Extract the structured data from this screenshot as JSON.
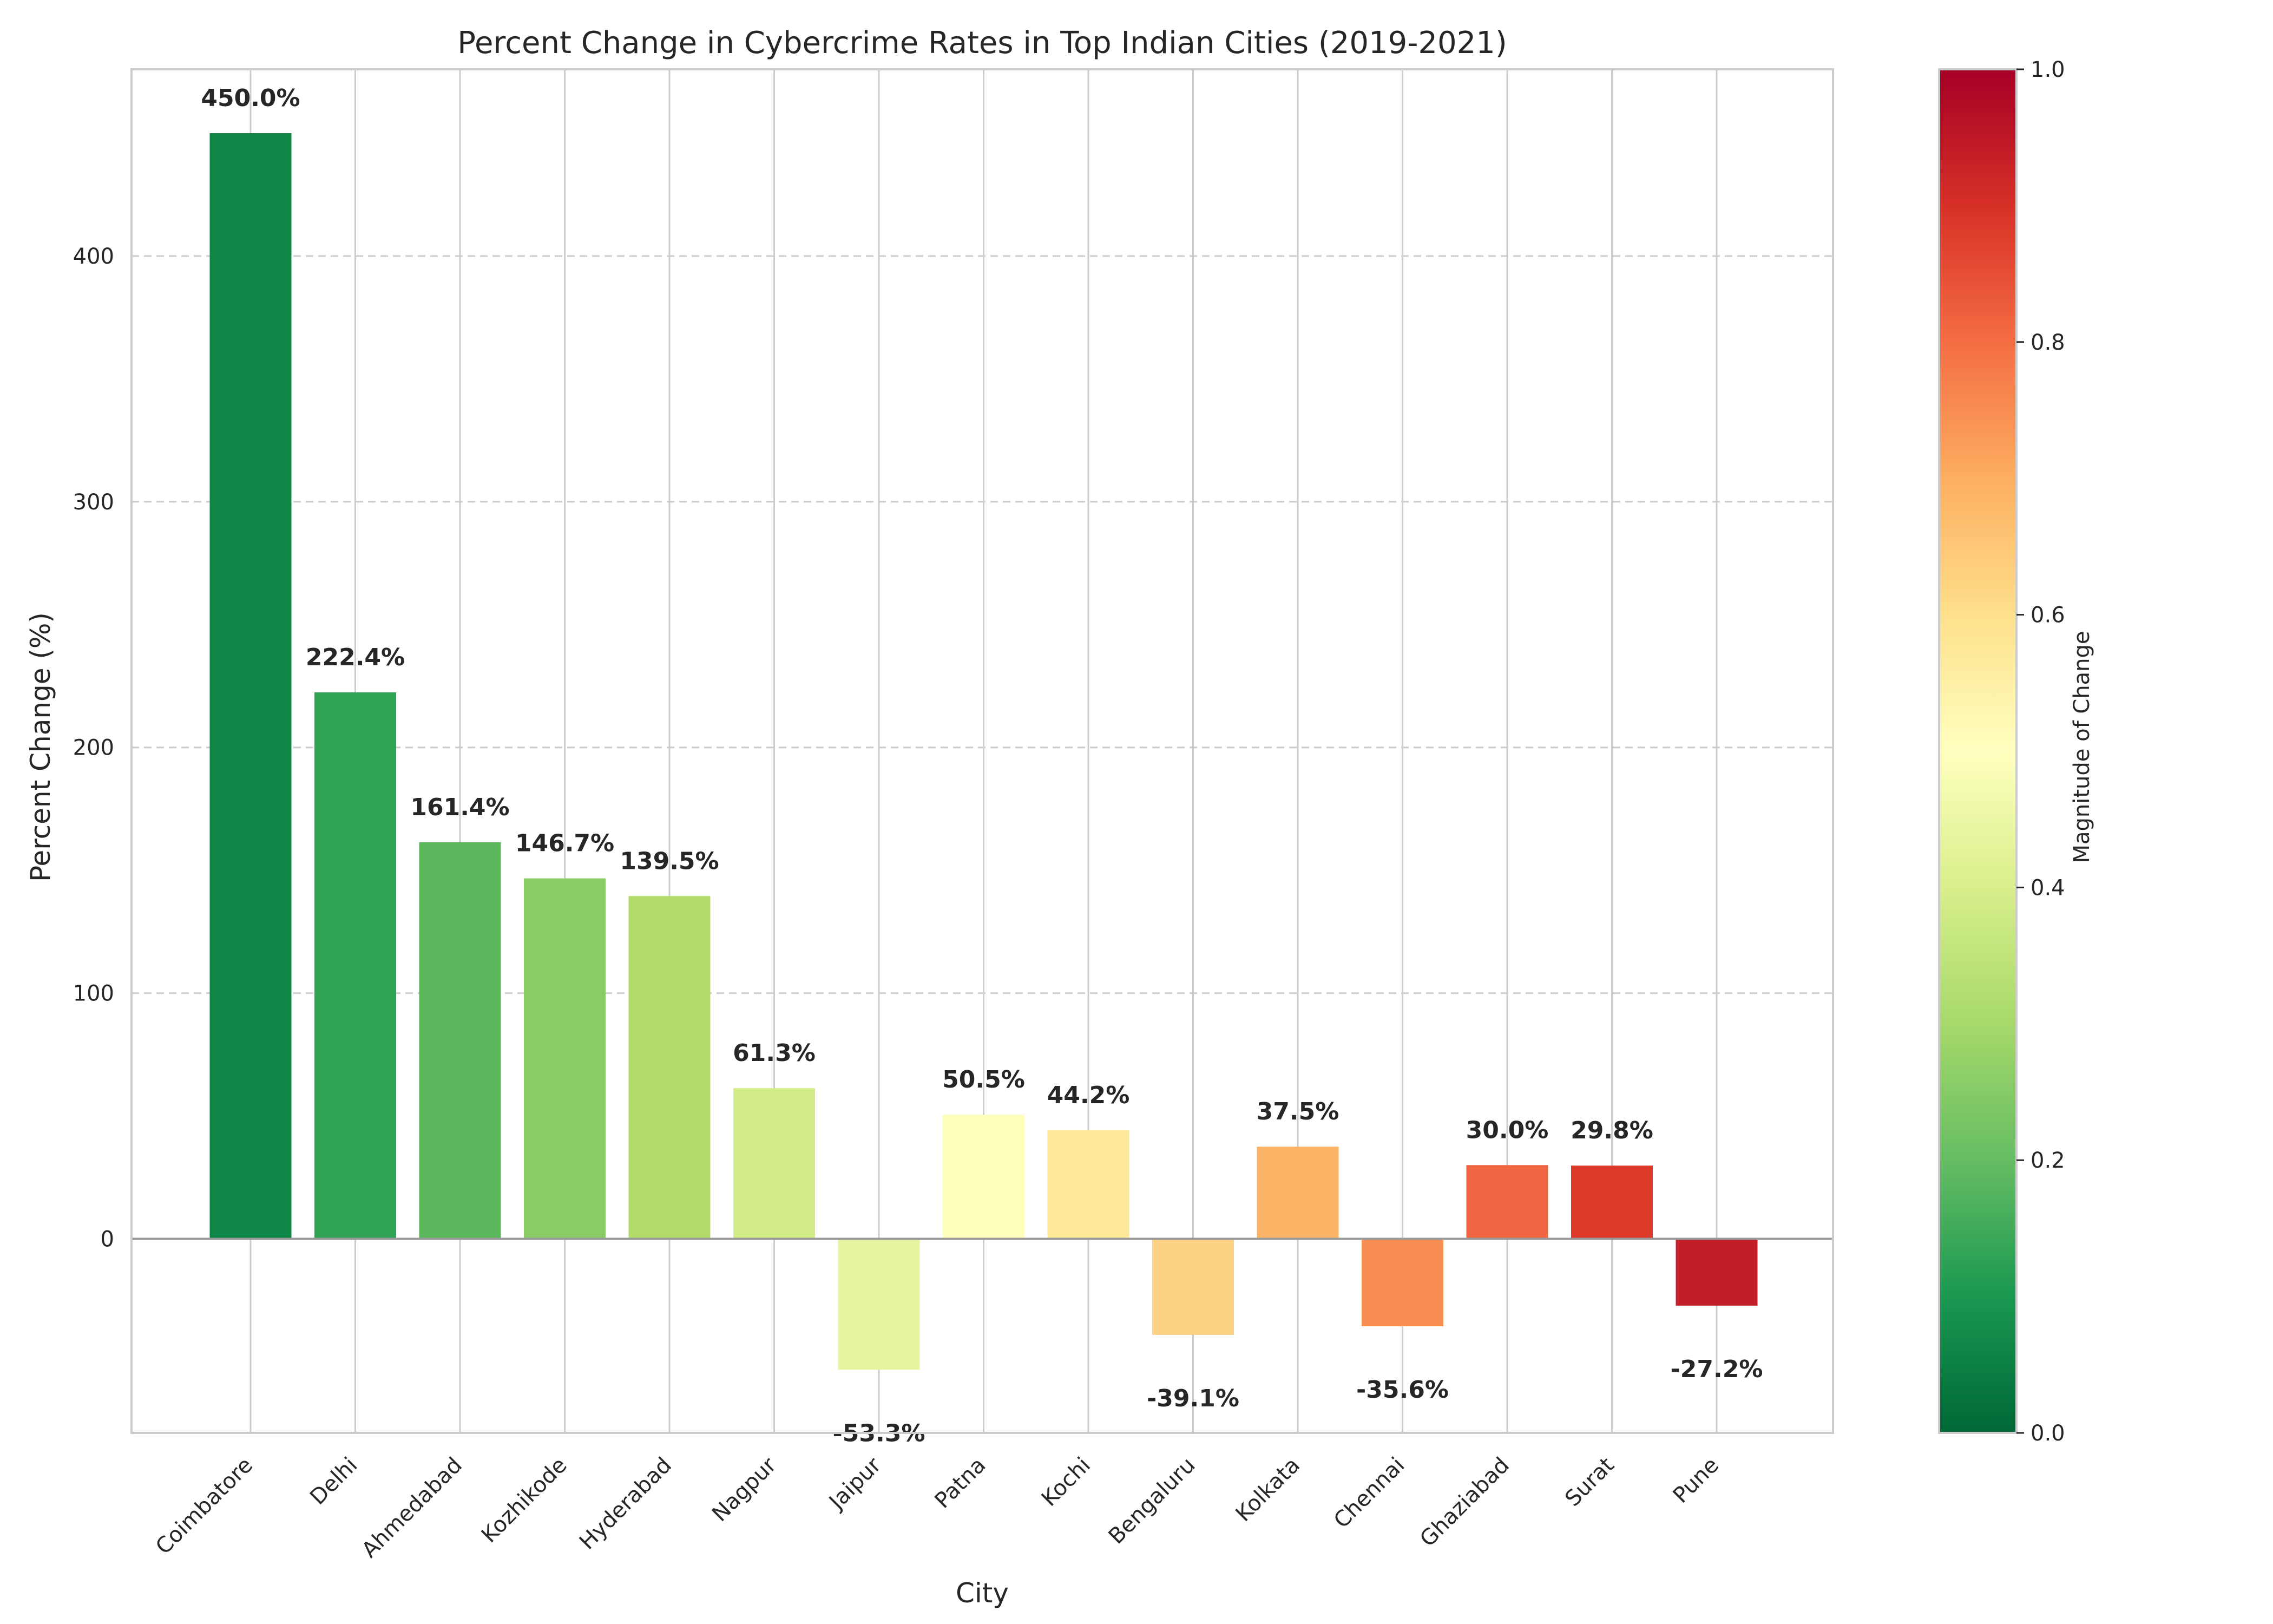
{
  "chart_data": {
    "type": "bar",
    "title": "Percent Change in Cybercrime Rates in Top Indian Cities (2019-2021)",
    "xlabel": "City",
    "ylabel": "Percent Change (%)",
    "categories": [
      "Coimbatore",
      "Delhi",
      "Ahmedabad",
      "Kozhikode",
      "Hyderabad",
      "Nagpur",
      "Jaipur",
      "Patna",
      "Kochi",
      "Bengaluru",
      "Kolkata",
      "Chennai",
      "Ghaziabad",
      "Surat",
      "Pune"
    ],
    "values": [
      450.0,
      222.4,
      161.4,
      146.7,
      139.5,
      61.3,
      -53.3,
      50.5,
      44.2,
      -39.1,
      37.5,
      -35.6,
      30.0,
      29.8,
      -27.2
    ],
    "data_labels": [
      "450.0%",
      "222.4%",
      "161.4%",
      "146.7%",
      "139.5%",
      "61.3%",
      "-53.3%",
      "50.5%",
      "44.2%",
      "-39.1%",
      "37.5%",
      "-35.6%",
      "30.0%",
      "29.8%",
      "-27.2%"
    ],
    "colors": [
      "#0f8646",
      "#31a354",
      "#5cb85c",
      "#8acb65",
      "#b1dc6c",
      "#d2ec87",
      "#e6f5a0",
      "#fefebd",
      "#fee99a",
      "#fdd282",
      "#fbb366",
      "#f88e51",
      "#f06642",
      "#dc3b2c",
      "#c11e28"
    ],
    "ylim": [
      -79,
      476
    ],
    "yticks": [
      0,
      100,
      200,
      300,
      400
    ],
    "grid": "y-dashed",
    "colorbar": {
      "label": "Magnitude of Change",
      "range": [
        0,
        1
      ],
      "ticks": [
        "0.0",
        "0.2",
        "0.4",
        "0.6",
        "0.8",
        "1.0"
      ],
      "colormap": "RdYlGn_r",
      "stops": [
        "#006837",
        "#1a9850",
        "#66bd63",
        "#a6d96a",
        "#d9ef8b",
        "#ffffbf",
        "#fee08b",
        "#fdae61",
        "#f46d43",
        "#d73027",
        "#a50026"
      ]
    }
  }
}
